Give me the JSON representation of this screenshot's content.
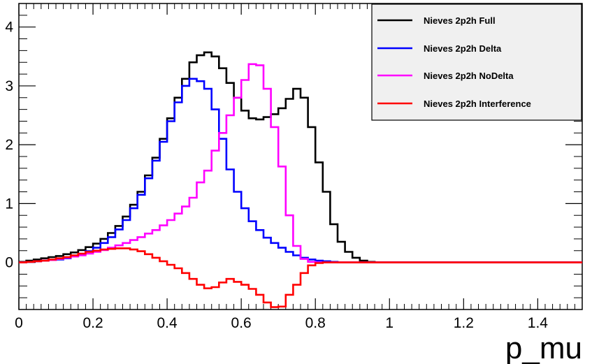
{
  "chart_data": {
    "type": "line",
    "step": true,
    "title": "",
    "xlabel": "p_mu",
    "ylabel": "",
    "xlim": [
      0,
      1.52
    ],
    "ylim": [
      -0.8,
      4.4
    ],
    "xticks": [
      0,
      0.2,
      0.4,
      0.6,
      0.8,
      1,
      1.2,
      1.4
    ],
    "xtick_labels": [
      "0",
      "0.2",
      "0.4",
      "0.6",
      "0.8",
      "1",
      "1.2",
      "1.4"
    ],
    "yticks": [
      0,
      1,
      2,
      3,
      4
    ],
    "ytick_labels": [
      "0",
      "1",
      "2",
      "3",
      "4"
    ],
    "grid": false,
    "legend_position": "top-right",
    "bin_edges": [
      0,
      0.02,
      0.04,
      0.06,
      0.08,
      0.1,
      0.12,
      0.14,
      0.16,
      0.18,
      0.2,
      0.22,
      0.24,
      0.26,
      0.28,
      0.3,
      0.32,
      0.34,
      0.36,
      0.38,
      0.4,
      0.42,
      0.44,
      0.46,
      0.48,
      0.5,
      0.52,
      0.54,
      0.56,
      0.58,
      0.6,
      0.62,
      0.64,
      0.66,
      0.68,
      0.7,
      0.72,
      0.74,
      0.76,
      0.78,
      0.8,
      0.82,
      0.84,
      0.86,
      0.88,
      0.9,
      0.92,
      0.94,
      0.96,
      0.98,
      1.0,
      1.52
    ],
    "series": [
      {
        "name": "Nieves 2p2h Full",
        "color": "#000000",
        "values": [
          0.01,
          0.03,
          0.05,
          0.07,
          0.09,
          0.11,
          0.14,
          0.17,
          0.21,
          0.26,
          0.32,
          0.4,
          0.5,
          0.62,
          0.78,
          0.98,
          1.2,
          1.48,
          1.78,
          2.1,
          2.45,
          2.8,
          3.12,
          3.4,
          3.52,
          3.57,
          3.5,
          3.3,
          3.05,
          2.8,
          2.58,
          2.45,
          2.43,
          2.47,
          2.52,
          2.62,
          2.78,
          2.95,
          2.8,
          2.3,
          1.7,
          1.2,
          0.65,
          0.35,
          0.18,
          0.08,
          0.03,
          0.01,
          0.0,
          0.0,
          0.0
        ]
      },
      {
        "name": "Nieves 2p2h Delta",
        "color": "#0000ff",
        "values": [
          0.0,
          0.01,
          0.02,
          0.03,
          0.04,
          0.05,
          0.07,
          0.1,
          0.14,
          0.19,
          0.25,
          0.33,
          0.43,
          0.56,
          0.72,
          0.92,
          1.15,
          1.43,
          1.73,
          2.05,
          2.4,
          2.72,
          3.0,
          3.12,
          3.08,
          2.95,
          2.6,
          2.1,
          1.58,
          1.2,
          0.92,
          0.7,
          0.55,
          0.42,
          0.33,
          0.25,
          0.18,
          0.12,
          0.08,
          0.05,
          0.03,
          0.02,
          0.01,
          0.0,
          0.0,
          0.0,
          0.0,
          0.0,
          0.0,
          0.0,
          0.0
        ]
      },
      {
        "name": "Nieves 2p2h NoDelta",
        "color": "#ff00ff",
        "values": [
          0.0,
          0.01,
          0.02,
          0.03,
          0.04,
          0.06,
          0.08,
          0.1,
          0.12,
          0.15,
          0.18,
          0.21,
          0.25,
          0.29,
          0.33,
          0.38,
          0.43,
          0.49,
          0.55,
          0.63,
          0.72,
          0.83,
          0.95,
          1.1,
          1.36,
          1.56,
          1.9,
          2.2,
          2.5,
          2.8,
          3.1,
          3.37,
          3.35,
          2.95,
          2.3,
          1.63,
          0.8,
          0.28,
          0.06,
          0.01,
          0.0,
          0.0,
          0.0,
          0.0,
          0.0,
          0.0,
          0.0,
          0.0,
          0.0,
          0.0,
          0.0
        ]
      },
      {
        "name": "Nieves 2p2h Interference",
        "color": "#ff0000",
        "values": [
          0.0,
          0.01,
          0.02,
          0.03,
          0.05,
          0.07,
          0.09,
          0.12,
          0.15,
          0.18,
          0.2,
          0.22,
          0.23,
          0.24,
          0.24,
          0.22,
          0.19,
          0.14,
          0.08,
          0.02,
          -0.04,
          -0.1,
          -0.18,
          -0.28,
          -0.38,
          -0.44,
          -0.42,
          -0.34,
          -0.28,
          -0.33,
          -0.38,
          -0.45,
          -0.55,
          -0.68,
          -0.76,
          -0.75,
          -0.55,
          -0.38,
          -0.18,
          -0.05,
          -0.01,
          0.0,
          0.0,
          0.0,
          0.0,
          0.0,
          0.0,
          0.0,
          0.0,
          0.0,
          0.0
        ]
      }
    ]
  }
}
